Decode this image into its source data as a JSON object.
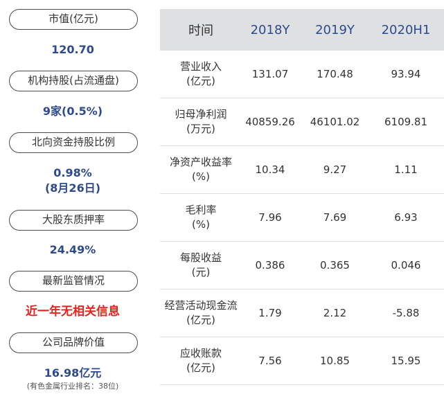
{
  "left": {
    "items": [
      {
        "label": "市值(亿元)",
        "value": "120.70"
      },
      {
        "label": "机构持股(占流通盘)",
        "value": "9家(0.5%)"
      },
      {
        "label": "北向资金持股比例",
        "value_line1": "0.98%",
        "value_line2": "(8月26日)"
      },
      {
        "label": "大股东质押率",
        "value": "24.49%"
      },
      {
        "label": "最新监管情况",
        "value": "近一年无相关信息"
      },
      {
        "label": "公司品牌价值",
        "value": "16.98亿元",
        "note": "(有色金属行业排名：38位)"
      }
    ]
  },
  "table": {
    "headers": [
      "时间",
      "2018Y",
      "2019Y",
      "2020H1"
    ],
    "rows": [
      {
        "label1": "营业收入",
        "label2": "(亿元)",
        "values": [
          "131.07",
          "170.48",
          "93.94"
        ]
      },
      {
        "label1": "归母净利润",
        "label2": "(万元)",
        "values": [
          "40859.26",
          "46101.02",
          "6109.81"
        ]
      },
      {
        "label1": "净资产收益率",
        "label2": "(%)",
        "values": [
          "10.34",
          "9.27",
          "1.11"
        ]
      },
      {
        "label1": "毛利率",
        "label2": "(%)",
        "values": [
          "7.96",
          "7.69",
          "6.93"
        ]
      },
      {
        "label1": "每股收益",
        "label2": "(元)",
        "values": [
          "0.386",
          "0.365",
          "0.046"
        ]
      },
      {
        "label1": "经营活动现金流",
        "label2": "(亿元)",
        "values": [
          "1.79",
          "2.12",
          "-5.88"
        ]
      },
      {
        "label1": "应收账款",
        "label2": "(亿元)",
        "values": [
          "7.56",
          "10.85",
          "15.95"
        ]
      }
    ]
  },
  "colors": {
    "accent": "#2d4a8e",
    "alert": "#e8231e",
    "header_bg": "#dfe0e2"
  }
}
